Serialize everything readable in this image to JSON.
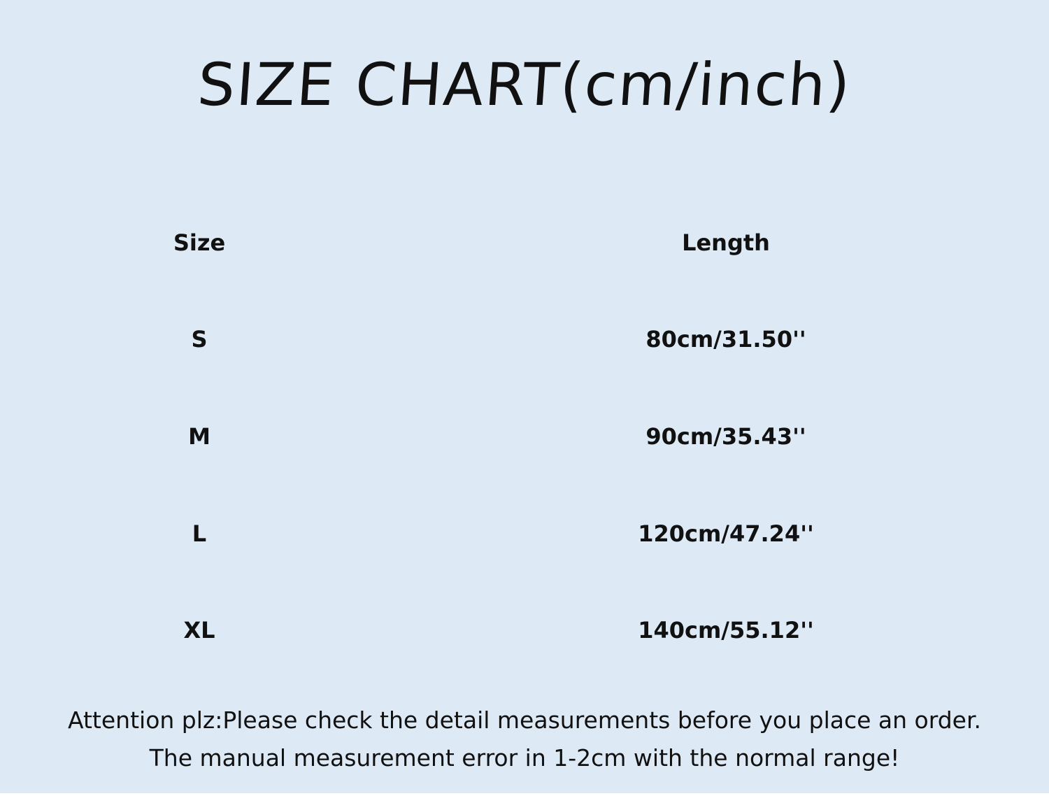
{
  "title": "SIZE CHART(cm/inch)",
  "table": {
    "headers": [
      "Size",
      "Length"
    ],
    "rows": [
      {
        "size": "S",
        "length": "80cm/31.50''"
      },
      {
        "size": "M",
        "length": "90cm/35.43''"
      },
      {
        "size": "L",
        "length": "120cm/47.24''"
      },
      {
        "size": "XL",
        "length": "140cm/55.12''"
      }
    ]
  },
  "notes": [
    "Attention plz:Please check the detail measurements before you place an order.",
    "The manual measurement error in 1-2cm with the normal range!"
  ],
  "colors": {
    "background": "#dde9f5",
    "text": "#111111"
  }
}
